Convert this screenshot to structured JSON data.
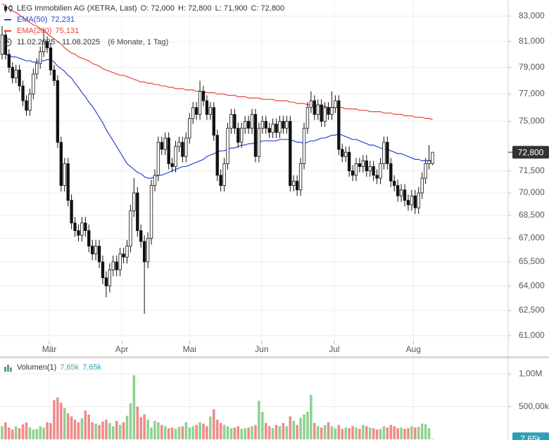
{
  "chart_data": [
    {
      "type": "candlestick",
      "title": "LEG Immobilien AG (XETRA, Last)",
      "ohlc_text": [
        "O: 72,000",
        "H: 72,800",
        "L: 71,900",
        "C: 72,800"
      ],
      "range_text": "11.02.2025 - 11.08.2025",
      "interval_text": "(6 Monate, 1 Tag)",
      "up_color": "#ffffff",
      "down_color": "#111111",
      "wick_color": "#111111",
      "price_label": "72,800",
      "log_scale": true,
      "grid": true,
      "ylim": [
        60.5,
        84.3
      ],
      "yticks": [
        {
          "value": 83,
          "label": "83,000"
        },
        {
          "value": 81,
          "label": "81,000"
        },
        {
          "value": 79,
          "label": "79,000"
        },
        {
          "value": 77,
          "label": "77,000"
        },
        {
          "value": 75,
          "label": "75,000"
        },
        {
          "value": 71.5,
          "label": "71,500"
        },
        {
          "value": 70,
          "label": "70,000"
        },
        {
          "value": 68.5,
          "label": "68,500"
        },
        {
          "value": 67,
          "label": "67,000"
        },
        {
          "value": 65.5,
          "label": "65,500"
        },
        {
          "value": 64,
          "label": "64,000"
        },
        {
          "value": 62.5,
          "label": "62,500"
        },
        {
          "value": 61,
          "label": "61,000"
        }
      ],
      "xlim": [
        -0.6,
        145.8
      ],
      "xticks": [
        {
          "value": 13.6,
          "label": "Mär"
        },
        {
          "value": 34.5,
          "label": "Apr"
        },
        {
          "value": 54,
          "label": "Mai"
        },
        {
          "value": 74.8,
          "label": "Jun"
        },
        {
          "value": 95.7,
          "label": "Jul"
        },
        {
          "value": 118.5,
          "label": "Aug"
        }
      ],
      "open": [
        80.0,
        81.5,
        80.0,
        79.0,
        78.2,
        78.8,
        77.6,
        76.5,
        75.8,
        77.0,
        78.5,
        79.3,
        80.2,
        81.0,
        80.5,
        78.8,
        78.0,
        73.5,
        70.5,
        72.0,
        69.5,
        68.0,
        67.5,
        67.2,
        68.0,
        67.5,
        66.5,
        66.0,
        66.5,
        65.5,
        64.5,
        64.0,
        65.0,
        65.5,
        65.0,
        66.0,
        65.8,
        66.5,
        68.8,
        70.0,
        67.5,
        66.8,
        65.5,
        67.0,
        70.5,
        71.2,
        73.5,
        73.0,
        73.8,
        72.0,
        71.8,
        73.2,
        73.5,
        72.5,
        73.8,
        75.2,
        76.0,
        75.5,
        77.2,
        76.5,
        75.5,
        76.0,
        74.0,
        71.2,
        70.5,
        72.0,
        74.5,
        75.5,
        74.5,
        73.5,
        74.5,
        75.0,
        74.5,
        75.5,
        72.5,
        74.5,
        75.0,
        74.5,
        74.2,
        74.8,
        74.2,
        75.0,
        74.5,
        75.0,
        70.5,
        70.8,
        70.2,
        72.0,
        74.5,
        76.0,
        76.5,
        75.5,
        76.2,
        75.0,
        76.0,
        75.5,
        76.0,
        76.5,
        73.0,
        72.5,
        72.8,
        71.5,
        71.2,
        72.0,
        71.8,
        72.2,
        71.5,
        71.8,
        71.2,
        71.0,
        72.0,
        73.5,
        72.0,
        70.8,
        70.5,
        69.8,
        70.2,
        69.5,
        69.2,
        69.8,
        69.0,
        70.0,
        71.0,
        72.0,
        72.0
      ],
      "high": [
        82.2,
        81.9,
        80.4,
        79.4,
        79.2,
        79.2,
        78.0,
        76.9,
        77.4,
        78.9,
        79.7,
        80.6,
        82.0,
        81.4,
        80.9,
        79.2,
        78.4,
        73.9,
        72.4,
        72.4,
        69.9,
        68.4,
        67.9,
        68.4,
        68.4,
        67.9,
        66.9,
        66.9,
        66.9,
        65.9,
        64.9,
        65.4,
        65.9,
        65.9,
        66.4,
        66.4,
        66.9,
        69.2,
        71.0,
        70.4,
        67.9,
        67.2,
        67.4,
        70.9,
        71.6,
        73.9,
        73.9,
        74.2,
        74.2,
        72.4,
        73.6,
        73.9,
        73.9,
        74.2,
        75.6,
        76.4,
        76.4,
        78.0,
        77.6,
        76.9,
        76.4,
        76.4,
        74.4,
        71.6,
        72.4,
        74.9,
        75.9,
        75.9,
        74.9,
        74.9,
        75.4,
        75.4,
        75.9,
        75.9,
        74.9,
        75.4,
        75.4,
        74.9,
        75.2,
        75.2,
        75.4,
        75.4,
        75.4,
        75.4,
        71.2,
        71.2,
        72.4,
        74.9,
        76.4,
        77.2,
        76.9,
        76.6,
        76.6,
        76.4,
        76.4,
        77.2,
        76.9,
        76.9,
        73.4,
        73.2,
        73.2,
        71.9,
        72.4,
        72.4,
        72.6,
        72.6,
        72.2,
        72.2,
        71.6,
        72.4,
        73.9,
        73.9,
        72.4,
        71.2,
        70.9,
        70.6,
        70.6,
        69.9,
        70.2,
        70.2,
        70.4,
        71.4,
        72.4,
        73.3,
        72.8
      ],
      "low": [
        79.6,
        79.6,
        78.6,
        77.8,
        77.8,
        77.2,
        76.1,
        75.4,
        75.4,
        76.6,
        78.1,
        78.9,
        79.8,
        80.1,
        78.4,
        77.6,
        73.1,
        70.1,
        70.1,
        69.1,
        67.6,
        67.1,
        66.8,
        66.8,
        67.1,
        66.1,
        65.6,
        65.6,
        65.1,
        64.1,
        63.3,
        63.6,
        64.6,
        64.6,
        64.6,
        65.4,
        65.4,
        66.1,
        68.4,
        67.1,
        66.4,
        62.3,
        65.1,
        66.6,
        70.1,
        70.8,
        72.6,
        72.6,
        71.6,
        71.4,
        71.4,
        72.8,
        72.1,
        72.1,
        73.4,
        74.8,
        75.1,
        75.1,
        76.1,
        75.1,
        75.1,
        73.6,
        70.8,
        70.1,
        70.1,
        71.6,
        74.1,
        74.1,
        73.1,
        73.1,
        74.1,
        74.1,
        74.1,
        72.1,
        72.1,
        74.1,
        74.1,
        73.8,
        73.8,
        73.8,
        73.8,
        74.1,
        74.1,
        70.1,
        70.1,
        69.8,
        69.8,
        71.6,
        74.1,
        75.6,
        75.1,
        75.1,
        74.6,
        74.6,
        75.1,
        75.1,
        75.6,
        72.6,
        72.1,
        72.1,
        71.1,
        70.8,
        70.8,
        71.4,
        71.4,
        71.1,
        71.1,
        70.8,
        70.6,
        70.6,
        71.6,
        71.6,
        70.4,
        70.1,
        69.4,
        69.4,
        69.1,
        68.8,
        68.8,
        68.6,
        68.6,
        69.6,
        70.6,
        71.6,
        71.9
      ],
      "close": [
        81.5,
        80.0,
        79.0,
        78.2,
        78.8,
        77.6,
        76.5,
        75.8,
        77.0,
        78.5,
        79.3,
        80.2,
        81.0,
        80.5,
        78.8,
        78.0,
        73.5,
        70.5,
        72.0,
        69.5,
        68.0,
        67.5,
        67.2,
        68.0,
        67.5,
        66.5,
        66.0,
        66.5,
        65.5,
        64.5,
        64.0,
        65.0,
        65.5,
        65.0,
        66.0,
        65.8,
        66.5,
        68.8,
        70.0,
        67.5,
        66.8,
        65.5,
        67.0,
        70.5,
        71.2,
        73.5,
        73.0,
        73.8,
        72.0,
        71.8,
        73.2,
        73.5,
        72.5,
        73.8,
        75.2,
        76.0,
        75.5,
        77.2,
        76.5,
        75.5,
        76.0,
        74.0,
        71.2,
        70.5,
        72.0,
        74.5,
        75.5,
        74.5,
        73.5,
        74.5,
        75.0,
        74.5,
        75.5,
        72.5,
        74.5,
        75.0,
        74.5,
        74.2,
        74.8,
        74.2,
        75.0,
        74.5,
        75.0,
        70.5,
        70.8,
        70.2,
        72.0,
        74.5,
        76.0,
        76.5,
        75.5,
        76.2,
        75.0,
        76.0,
        75.5,
        76.0,
        76.5,
        73.0,
        72.5,
        72.8,
        71.5,
        71.2,
        72.0,
        71.8,
        72.2,
        71.5,
        71.8,
        71.2,
        71.0,
        72.0,
        73.5,
        72.0,
        70.8,
        70.5,
        69.8,
        70.2,
        69.5,
        69.2,
        69.8,
        69.0,
        70.0,
        71.0,
        72.0,
        72.2,
        72.8
      ],
      "series": [
        {
          "name": "EMA(50)",
          "color": "#2a44d4",
          "legend_value": "72,231",
          "values": [
            80.1,
            80.0,
            79.9,
            79.8,
            79.8,
            79.7,
            79.6,
            79.5,
            79.5,
            79.4,
            79.4,
            79.5,
            79.5,
            79.6,
            79.6,
            79.4,
            79.1,
            78.9,
            78.7,
            78.4,
            78.2,
            77.8,
            77.5,
            77.1,
            76.8,
            76.4,
            76.1,
            75.7,
            75.3,
            74.9,
            74.4,
            74.0,
            73.6,
            73.2,
            72.8,
            72.4,
            72.0,
            71.8,
            71.6,
            71.4,
            71.3,
            71.1,
            71.0,
            71.0,
            71.1,
            71.2,
            71.2,
            71.3,
            71.4,
            71.5,
            71.6,
            71.7,
            71.8,
            71.8,
            71.9,
            72.0,
            72.1,
            72.2,
            72.3,
            72.5,
            72.6,
            72.7,
            72.8,
            72.9,
            72.9,
            73.0,
            73.1,
            73.1,
            73.2,
            73.3,
            73.3,
            73.4,
            73.4,
            73.5,
            73.5,
            73.6,
            73.6,
            73.6,
            73.6,
            73.6,
            73.7,
            73.7,
            73.7,
            73.7,
            73.6,
            73.5,
            73.5,
            73.4,
            73.5,
            73.6,
            73.6,
            73.7,
            73.8,
            73.8,
            73.9,
            74.0,
            74.0,
            74.1,
            74.0,
            73.9,
            73.8,
            73.7,
            73.7,
            73.6,
            73.5,
            73.4,
            73.3,
            73.3,
            73.2,
            73.1,
            73.0,
            73.0,
            72.9,
            72.8,
            72.7,
            72.7,
            72.6,
            72.5,
            72.4,
            72.3,
            72.3,
            72.2,
            72.2,
            72.2,
            72.231
          ]
        },
        {
          "name": "EMA(200)",
          "color": "#e8453c",
          "legend_value": "75,131",
          "values": [
            84.0,
            83.8,
            83.6,
            83.4,
            83.3,
            83.1,
            82.9,
            82.7,
            82.5,
            82.3,
            82.2,
            82.0,
            81.8,
            81.6,
            81.4,
            81.2,
            81.0,
            80.8,
            80.5,
            80.3,
            80.1,
            80.0,
            79.8,
            79.7,
            79.6,
            79.5,
            79.3,
            79.2,
            79.1,
            78.9,
            78.8,
            78.7,
            78.6,
            78.5,
            78.4,
            78.4,
            78.3,
            78.2,
            78.1,
            78.0,
            77.9,
            77.9,
            77.8,
            77.8,
            77.7,
            77.7,
            77.6,
            77.6,
            77.5,
            77.5,
            77.4,
            77.4,
            77.4,
            77.3,
            77.3,
            77.3,
            77.2,
            77.2,
            77.2,
            77.1,
            77.1,
            77.1,
            77.0,
            77.0,
            77.0,
            76.9,
            76.9,
            76.9,
            76.8,
            76.8,
            76.8,
            76.7,
            76.7,
            76.7,
            76.7,
            76.6,
            76.6,
            76.6,
            76.6,
            76.5,
            76.5,
            76.5,
            76.5,
            76.4,
            76.4,
            76.3,
            76.3,
            76.3,
            76.2,
            76.2,
            76.1,
            76.1,
            76.1,
            76.1,
            76.0,
            76.0,
            76.0,
            76.0,
            76.0,
            75.9,
            75.9,
            75.9,
            75.9,
            75.8,
            75.8,
            75.8,
            75.7,
            75.7,
            75.7,
            75.7,
            75.6,
            75.6,
            75.6,
            75.5,
            75.5,
            75.5,
            75.4,
            75.4,
            75.4,
            75.3,
            75.3,
            75.3,
            75.2,
            75.2,
            75.131
          ]
        }
      ]
    },
    {
      "type": "bar",
      "name": "Volumen(1)",
      "legend_values": [
        "7,65k",
        "7,65k"
      ],
      "legend_colors": [
        "#5aa67a",
        "#2f9fb5"
      ],
      "volume_label": "7,65k",
      "up_color": "#8fd18f",
      "down_color": "#f08a8a",
      "grid": true,
      "ylim": [
        0,
        1228000
      ],
      "yticks": [
        {
          "value": 1000000,
          "label": "1,00M"
        },
        {
          "value": 500000,
          "label": "500,00k"
        }
      ],
      "values": [
        200000,
        260000,
        180000,
        150000,
        200000,
        170000,
        230000,
        260000,
        180000,
        150000,
        160000,
        200000,
        180000,
        260000,
        250000,
        600000,
        640000,
        560000,
        480000,
        400000,
        350000,
        300000,
        260000,
        320000,
        440000,
        380000,
        260000,
        240000,
        220000,
        270000,
        300000,
        250000,
        200000,
        280000,
        220000,
        260000,
        360000,
        550000,
        980000,
        500000,
        340000,
        380000,
        300000,
        180000,
        280000,
        260000,
        220000,
        200000,
        170000,
        180000,
        160000,
        190000,
        200000,
        260000,
        180000,
        200000,
        220000,
        260000,
        240000,
        200000,
        350000,
        460000,
        300000,
        250000,
        220000,
        200000,
        170000,
        180000,
        200000,
        160000,
        170000,
        180000,
        200000,
        220000,
        590000,
        420000,
        250000,
        200000,
        170000,
        220000,
        200000,
        250000,
        200000,
        350000,
        280000,
        220000,
        330000,
        380000,
        420000,
        680000,
        250000,
        200000,
        180000,
        220000,
        260000,
        200000,
        170000,
        220000,
        160000,
        180000,
        170000,
        200000,
        180000,
        160000,
        220000,
        200000,
        180000,
        170000,
        150000,
        160000,
        200000,
        180000,
        220000,
        200000,
        170000,
        180000,
        160000,
        170000,
        200000,
        180000,
        190000,
        240000,
        230000,
        170000,
        7650
      ]
    }
  ]
}
